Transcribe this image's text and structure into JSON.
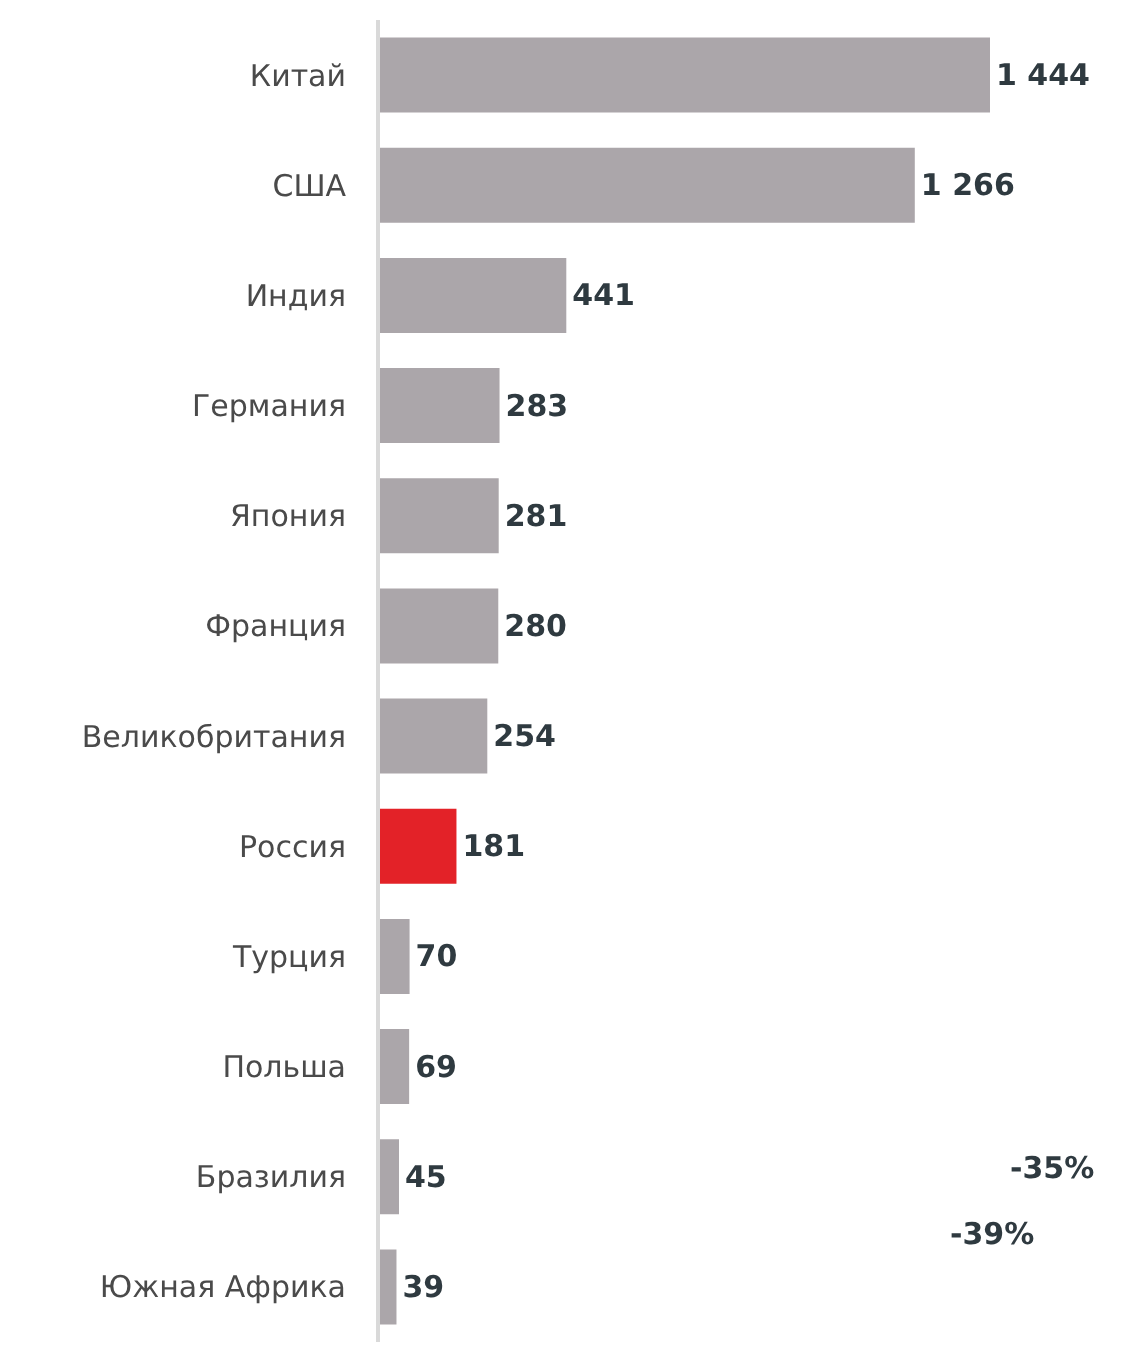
{
  "chart_data": {
    "type": "bar",
    "orientation": "horizontal",
    "categories": [
      "Китай",
      "США",
      "Индия",
      "Германия",
      "Япония",
      "Франция",
      "Великобритания",
      "Россия",
      "Турция",
      "Польша",
      "Бразилия",
      "Южная Африка"
    ],
    "values": [
      1444,
      1266,
      441,
      283,
      281,
      280,
      254,
      181,
      70,
      69,
      45,
      39
    ],
    "colors": [
      "#aba6aa",
      "#aba6aa",
      "#aba6aa",
      "#aba6aa",
      "#aba6aa",
      "#aba6aa",
      "#aba6aa",
      "#e32228",
      "#aba6aa",
      "#aba6aa",
      "#aba6aa",
      "#aba6aa"
    ],
    "value_labels": [
      "1 444",
      "1 266",
      "441",
      "283",
      "281",
      "280",
      "254",
      "181",
      "70",
      "69",
      "45",
      "39"
    ],
    "annotations": [
      "-35%",
      "-39%"
    ]
  }
}
